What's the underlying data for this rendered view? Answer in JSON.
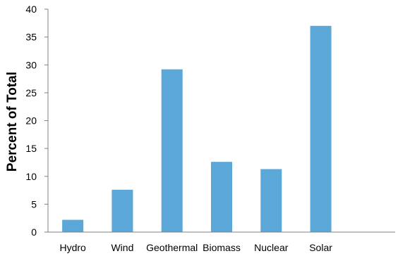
{
  "chart_data": {
    "type": "bar",
    "categories": [
      "Hydro",
      "Wind",
      "Geothermal",
      "Biomass",
      "Nuclear",
      "Solar"
    ],
    "values": [
      2.2,
      7.6,
      29.2,
      12.6,
      11.3,
      37.0
    ],
    "title": "",
    "xlabel": "",
    "ylabel": "Percent of Total",
    "ylim": [
      0,
      40
    ],
    "yticks": [
      0,
      5,
      10,
      15,
      20,
      25,
      30,
      35,
      40
    ],
    "grid": false,
    "legend": "none",
    "bar_color": "#5aa7d8"
  }
}
